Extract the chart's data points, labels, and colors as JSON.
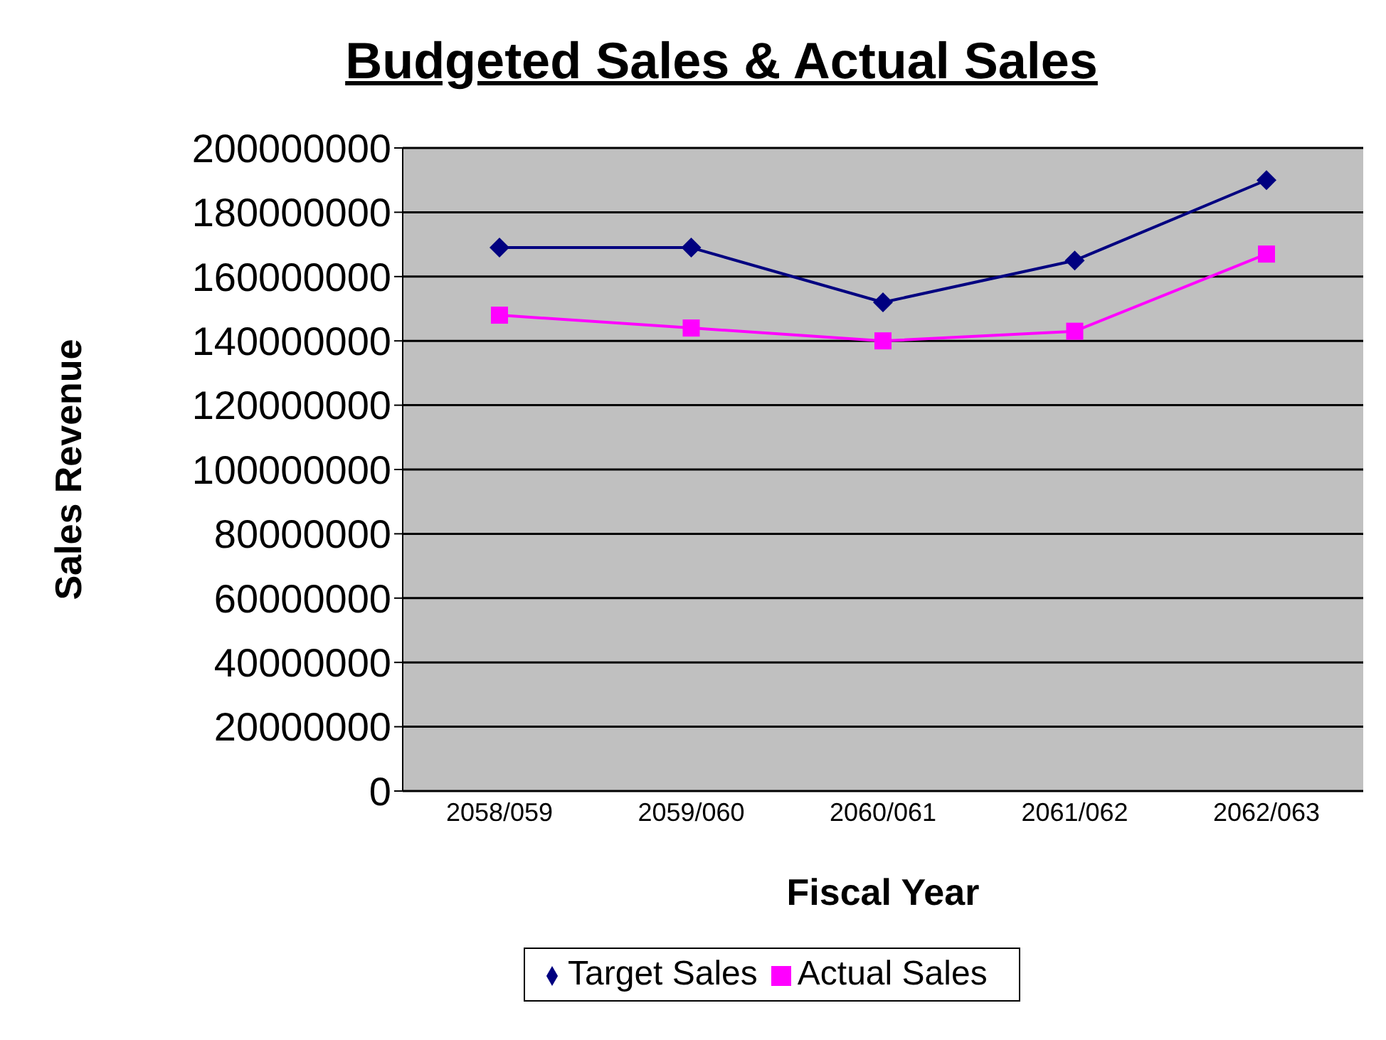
{
  "chart_data": {
    "type": "line",
    "title": "Budgeted Sales & Actual Sales",
    "xlabel": "Fiscal Year",
    "ylabel": "Sales Revenue",
    "categories": [
      "2058/059",
      "2059/060",
      "2060/061",
      "2061/062",
      "2062/063"
    ],
    "series": [
      {
        "name": "Target Sales",
        "color": "#000080",
        "marker": "diamond",
        "values": [
          169000000,
          169000000,
          152000000,
          165000000,
          190000000
        ]
      },
      {
        "name": "Actual Sales",
        "color": "#ff00ff",
        "marker": "square",
        "values": [
          148000000,
          144000000,
          140000000,
          143000000,
          167000000
        ]
      }
    ],
    "ylim": [
      0,
      200000000
    ],
    "yticks": [
      0,
      20000000,
      40000000,
      60000000,
      80000000,
      100000000,
      120000000,
      140000000,
      160000000,
      180000000,
      200000000
    ],
    "grid": "y",
    "legend": "bottom"
  }
}
